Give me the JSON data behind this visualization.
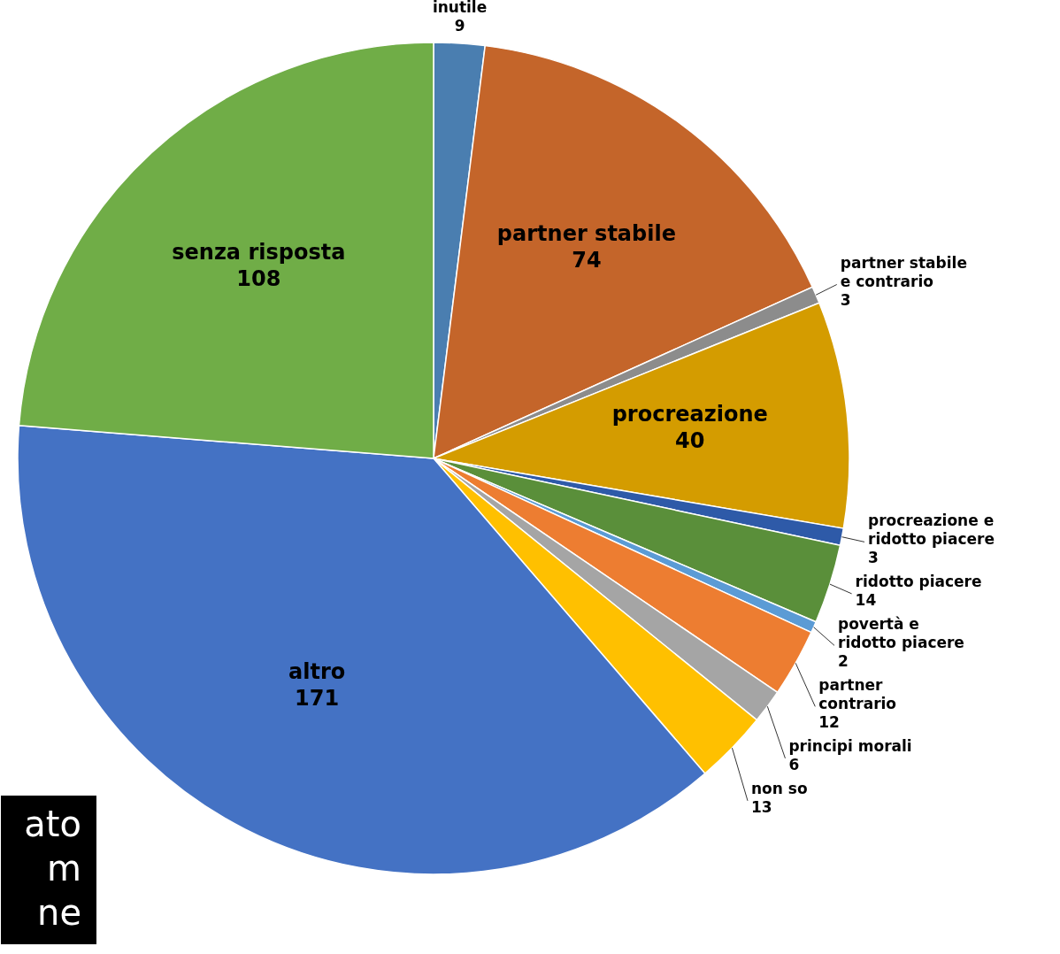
{
  "chart_data": {
    "type": "pie",
    "categories": [
      "inutile",
      "partner stabile",
      "partner stabile e contrario",
      "procreazione",
      "procreazione e ridotto piacere",
      "ridotto piacere",
      "povertà e ridotto piacere",
      "partner contrario",
      "principi morali",
      "non so",
      "altro",
      "senza risposta"
    ],
    "values": [
      9,
      74,
      3,
      40,
      3,
      14,
      2,
      12,
      6,
      13,
      171,
      108
    ],
    "colors": [
      "#4a7eb0",
      "#c4652a",
      "#8c8c8c",
      "#d49c00",
      "#2e5aa8",
      "#5a8f3a",
      "#5b9bd5",
      "#ed7d31",
      "#a5a5a5",
      "#ffc000",
      "#4472c4",
      "#70ad47"
    ],
    "data_labels": true,
    "legend": false,
    "annotations": [
      "ato",
      "m",
      "ne"
    ]
  }
}
